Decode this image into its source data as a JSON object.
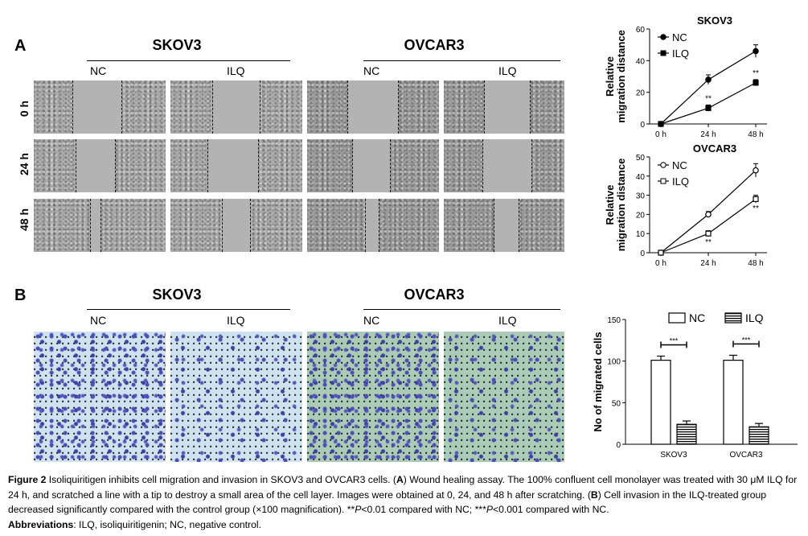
{
  "panelA": {
    "letter": "A",
    "cells": [
      "SKOV3",
      "OVCAR3"
    ],
    "conditions": [
      "NC",
      "ILQ"
    ],
    "times": [
      "0 h",
      "24 h",
      "48 h"
    ]
  },
  "panelB": {
    "letter": "B",
    "cells": [
      "SKOV3",
      "OVCAR3"
    ],
    "conditions": [
      "NC",
      "ILQ"
    ]
  },
  "chart_data": [
    {
      "type": "line",
      "title": "SKOV3",
      "ylabel_line1": "Relative",
      "ylabel_line2": "migration distance",
      "categories": [
        "0 h",
        "24 h",
        "48 h"
      ],
      "ylim": [
        0,
        60
      ],
      "yticks": [
        "0",
        "20",
        "40",
        "60"
      ],
      "legend_position": "top-left",
      "series": [
        {
          "name": "NC",
          "values": [
            0,
            28,
            46
          ],
          "errors": [
            0,
            3,
            4
          ],
          "marker": "filled-circle"
        },
        {
          "name": "ILQ",
          "values": [
            0,
            10,
            26
          ],
          "errors": [
            0,
            2,
            2
          ],
          "marker": "filled-square"
        }
      ],
      "annotations": [
        {
          "category": "24 h",
          "text": "**"
        },
        {
          "category": "48 h",
          "text": "**"
        }
      ]
    },
    {
      "type": "line",
      "title": "OVCAR3",
      "ylabel_line1": "Relative",
      "ylabel_line2": "migration distance",
      "categories": [
        "0 h",
        "24 h",
        "48 h"
      ],
      "ylim": [
        0,
        50
      ],
      "yticks": [
        "0",
        "10",
        "20",
        "30",
        "40",
        "50"
      ],
      "legend_position": "top-left",
      "series": [
        {
          "name": "NC",
          "values": [
            0,
            20,
            43
          ],
          "errors": [
            0,
            1.5,
            3.5
          ],
          "marker": "open-circle"
        },
        {
          "name": "ILQ",
          "values": [
            0,
            10,
            28
          ],
          "errors": [
            0,
            1.5,
            2
          ],
          "marker": "open-square"
        }
      ],
      "annotations": [
        {
          "category": "24 h",
          "text": "**"
        },
        {
          "category": "48 h",
          "text": "**"
        }
      ]
    },
    {
      "type": "bar",
      "title": "",
      "ylabel": "No of migrated cells",
      "categories": [
        "SKOV3",
        "OVCAR3"
      ],
      "ylim": [
        0,
        150
      ],
      "yticks": [
        "0",
        "50",
        "100",
        "150"
      ],
      "legend_position": "top",
      "series": [
        {
          "name": "NC",
          "values": [
            101,
            101
          ],
          "errors": [
            5,
            6
          ],
          "fill": "white"
        },
        {
          "name": "ILQ",
          "values": [
            24,
            21
          ],
          "errors": [
            4,
            4
          ],
          "fill": "striped"
        }
      ],
      "annotations": [
        {
          "category": "SKOV3",
          "text": "***"
        },
        {
          "category": "OVCAR3",
          "text": "***"
        }
      ]
    }
  ],
  "caption": {
    "fig": "Figure 2",
    "p1": " Isoliquiritigen inhibits cell migration and invasion in SKOV3 and OVCAR3 cells. (",
    "A": "A",
    "p2": ") Wound healing assay. The 100% confluent cell monolayer was treated with 30 μM ILQ for 24 h, and scratched a line with a tip to destroy a small area of the cell layer. Images were obtained at 0, 24, and 48 h after scratching. (",
    "B": "B",
    "p3": ") Cell invasion in the ILQ-treated group decreased significantly compared with the control group (×100 magnification). **",
    "P1": "P",
    "p4": "<0.01 compared with NC; ***",
    "P2": "P",
    "p5": "<0.001 compared with NC.",
    "abbr_label": "Abbreviations",
    "abbr_text": ": ILQ, isoliquiritigenin; NC, negative control."
  }
}
